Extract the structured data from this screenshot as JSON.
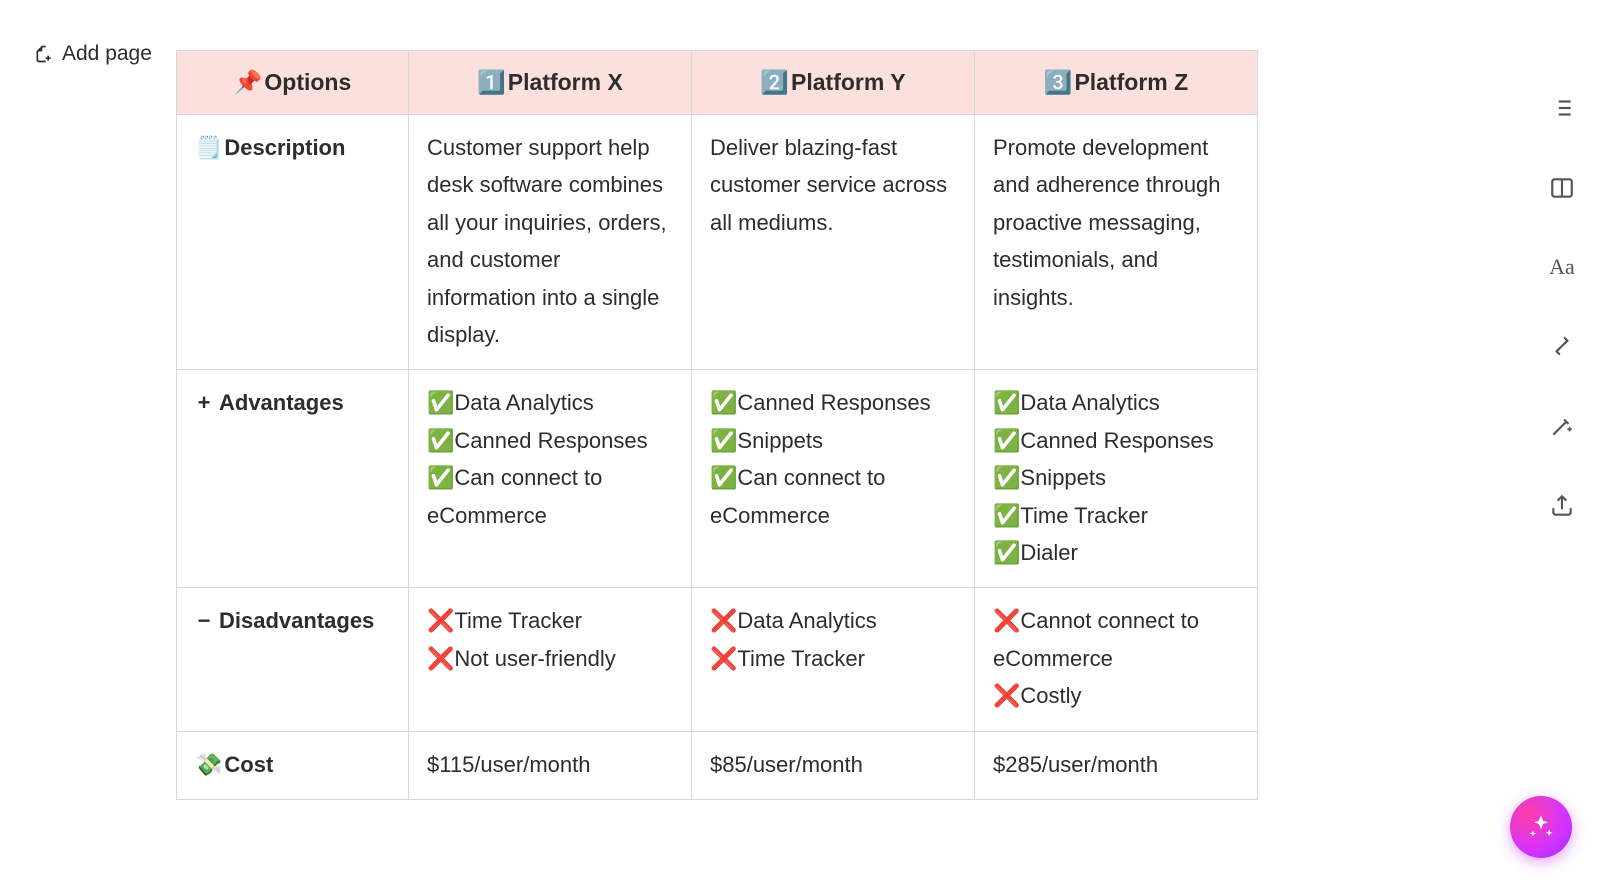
{
  "addPageLabel": "Add page",
  "checkEmoji": "✅",
  "crossEmoji": "❌",
  "colors": {
    "header_bg": "#fbe0de",
    "border": "#d9d9d9",
    "text": "#2d2d2d",
    "rail_icon": "#555555",
    "fab_gradient_from": "#ff3ea5",
    "fab_gradient_mid": "#d433ff",
    "fab_gradient_to": "#9a2cff"
  },
  "columns": [
    {
      "emoji": "📌",
      "label": "Options"
    },
    {
      "emoji": "1️⃣",
      "label": "Platform X"
    },
    {
      "emoji": "2️⃣",
      "label": "Platform Y"
    },
    {
      "emoji": "3️⃣",
      "label": "Platform Z"
    }
  ],
  "rows": {
    "description": {
      "emoji": "🗒️",
      "label": "Description",
      "x": "Customer support help desk software combines all your in­quiries, orders, and customer information into a single display.",
      "y": "Deliver blazing-fast customer service across all mediums.",
      "z": "Promote develop­ment and adherence through proactive messaging, testimo­nials, and insights."
    },
    "advantages": {
      "icon": "+",
      "label": "Advantages",
      "x": [
        "Data Analytics",
        "Canned Responses",
        "Can connect to eCommerce"
      ],
      "y": [
        "Canned Responses",
        "Snippets",
        "Can connect to eCommerce"
      ],
      "z": [
        "Data Analytics",
        "Canned Responses",
        "Snippets",
        "Time Tracker",
        "Dialer"
      ]
    },
    "disadvantages": {
      "icon": "−",
      "label": "Disadvantages",
      "x": [
        "Time Tracker",
        "Not user-friendly"
      ],
      "y": [
        "Data Analytics",
        "Time Tracker"
      ],
      "z": [
        "Cannot connect to eCommerce",
        "Costly"
      ]
    },
    "cost": {
      "emoji": "💸",
      "label": "Cost",
      "x": "$115/user/month",
      "y": "$85/user/month",
      "z": "$285/user/month"
    }
  },
  "rail": {
    "outline_tooltip": "Outline",
    "typography_label": "Aa",
    "ai_tooltip": "AI"
  }
}
